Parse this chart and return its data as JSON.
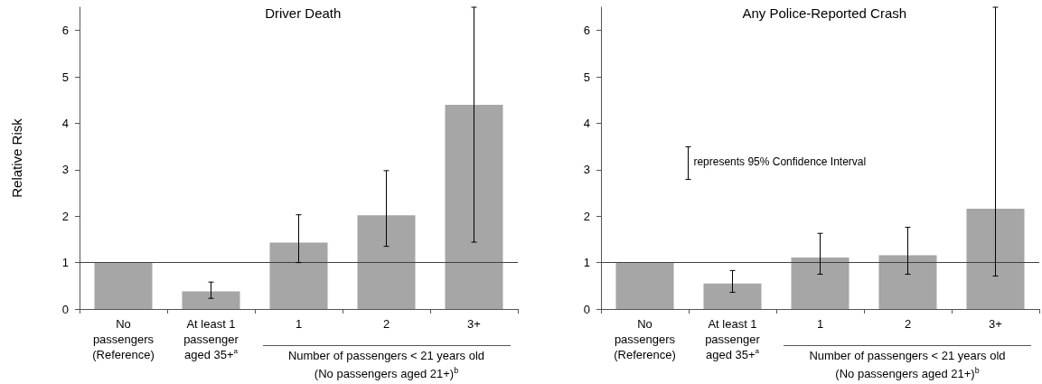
{
  "chart_data": [
    {
      "type": "bar",
      "title": "Driver Death",
      "ylabel": "Relative Risk",
      "categories": [
        "No\npassengers\n(Reference)",
        "At least 1\npassenger\naged 35+$^{a}$",
        "1",
        "2",
        "3+"
      ],
      "values": [
        1,
        0.38,
        1.43,
        2.02,
        4.4
      ],
      "errors": [
        null,
        [
          0.23,
          0.58
        ],
        [
          1.0,
          2.03
        ],
        [
          1.35,
          2.98
        ],
        [
          1.44,
          6.5
        ]
      ],
      "color": "#a6a6a6",
      "ylim": [
        0,
        6.5
      ],
      "yticks": [
        0,
        1,
        2,
        3,
        4,
        5,
        6
      ],
      "grid": false,
      "ref_lines": [
        {
          "axis": "y",
          "value": 1,
          "label": null,
          "color": "#404040"
        }
      ],
      "annotations": [
        "Number of passengers < 21 years old\n(No passengers aged 21+)$^{b}$"
      ]
    },
    {
      "type": "bar",
      "title": "Any Police-Reported Crash",
      "categories": [
        "No\npassengers\n(Reference)",
        "At least 1\npassenger\naged 35+$^{a}$",
        "1",
        "2",
        "3+"
      ],
      "values": [
        1,
        0.55,
        1.11,
        1.16,
        2.16
      ],
      "errors": [
        null,
        [
          0.36,
          0.83
        ],
        [
          0.75,
          1.63
        ],
        [
          0.75,
          1.76
        ],
        [
          0.71,
          6.5
        ]
      ],
      "color": "#a6a6a6",
      "ylim": [
        0,
        6.5
      ],
      "yticks": [
        0,
        1,
        2,
        3,
        4,
        5,
        6
      ],
      "grid": false,
      "ref_lines": [
        {
          "axis": "y",
          "value": 1,
          "label": null,
          "color": "#404040"
        }
      ],
      "annotations": [
        "Number of passengers < 21 years old\n(No passengers aged 21+)$^{b}$",
        "represents 95% Confidence Interval"
      ]
    }
  ]
}
